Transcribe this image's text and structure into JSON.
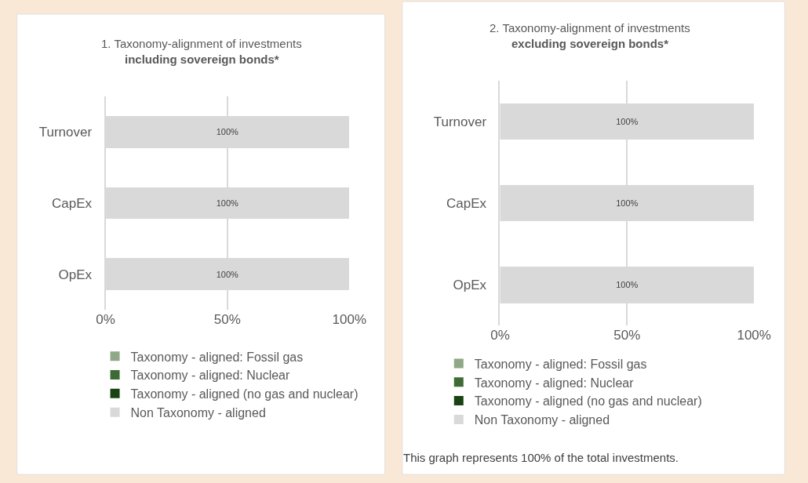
{
  "chart_data": [
    {
      "type": "bar",
      "orientation": "horizontal",
      "stacked": true,
      "title": "1. Taxonomy-alignment of investments",
      "subtitle": "including sovereign bonds*",
      "categories": [
        "Turnover",
        "CapEx",
        "OpEx"
      ],
      "xlim": [
        0,
        100
      ],
      "xticks": [
        {
          "value": 0,
          "label": "0%"
        },
        {
          "value": 50,
          "label": "50%"
        },
        {
          "value": 100,
          "label": "100%"
        }
      ],
      "grid": "x",
      "legend": "bottom",
      "series": [
        {
          "name": "Taxonomy - aligned: Fossil gas",
          "color": "#8fa886",
          "values": [
            0,
            0,
            0
          ]
        },
        {
          "name": "Taxonomy - aligned: Nuclear",
          "color": "#3e6b35",
          "values": [
            0,
            0,
            0
          ]
        },
        {
          "name": "Taxonomy - aligned (no gas and nuclear)",
          "color": "#1a4314",
          "values": [
            0,
            0,
            0
          ]
        },
        {
          "name": "Non Taxonomy - aligned",
          "color": "#d9d9d9",
          "values": [
            100,
            100,
            100
          ],
          "value_labels": [
            "100%",
            "100%",
            "100%"
          ]
        }
      ]
    },
    {
      "type": "bar",
      "orientation": "horizontal",
      "stacked": true,
      "title": "2. Taxonomy-alignment of investments",
      "subtitle": "excluding sovereign bonds*",
      "categories": [
        "Turnover",
        "CapEx",
        "OpEx"
      ],
      "xlim": [
        0,
        100
      ],
      "xticks": [
        {
          "value": 0,
          "label": "0%"
        },
        {
          "value": 50,
          "label": "50%"
        },
        {
          "value": 100,
          "label": "100%"
        }
      ],
      "grid": "x",
      "legend": "bottom",
      "annotations": [
        "This graph represents 100% of the total investments."
      ],
      "series": [
        {
          "name": "Taxonomy - aligned: Fossil gas",
          "color": "#8fa886",
          "values": [
            0,
            0,
            0
          ]
        },
        {
          "name": "Taxonomy - aligned: Nuclear",
          "color": "#3e6b35",
          "values": [
            0,
            0,
            0
          ]
        },
        {
          "name": "Taxonomy - aligned (no gas and nuclear)",
          "color": "#1a4314",
          "values": [
            0,
            0,
            0
          ]
        },
        {
          "name": "Non Taxonomy - aligned",
          "color": "#d9d9d9",
          "values": [
            100,
            100,
            100
          ],
          "value_labels": [
            "100%",
            "100%",
            "100%"
          ]
        }
      ]
    }
  ]
}
